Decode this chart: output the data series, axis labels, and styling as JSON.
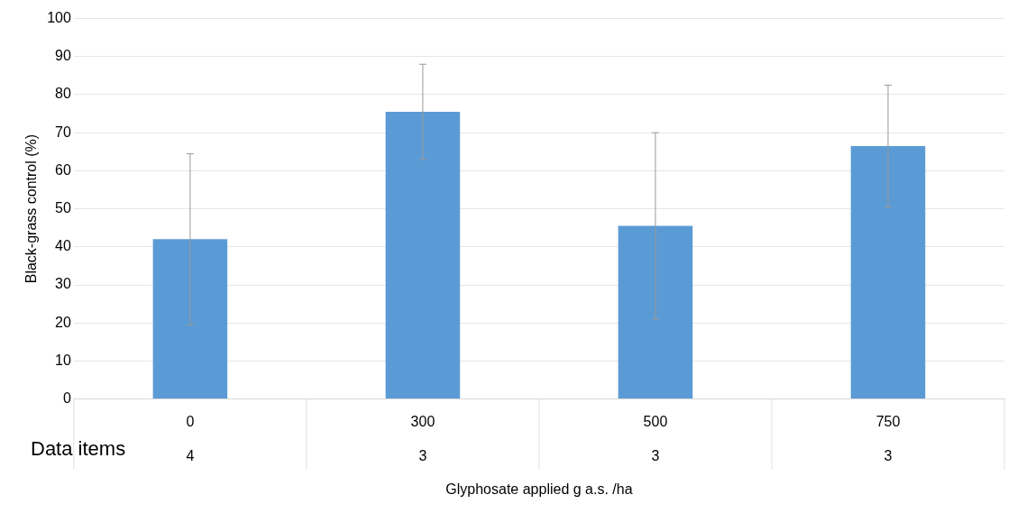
{
  "chart_data": {
    "type": "bar",
    "xlabel": "Glyphosate applied g a.s. /ha",
    "ylabel": "Black-grass control (%)",
    "categories": [
      "0",
      "300",
      "500",
      "750"
    ],
    "series": [
      {
        "color": "#5b9bd5",
        "values": [
          42,
          75.5,
          45.5,
          66.5
        ],
        "errors": [
          [
            19.5,
            64.5
          ],
          [
            63,
            88
          ],
          [
            21,
            70
          ],
          [
            50.5,
            82.5
          ]
        ]
      }
    ],
    "ylim": [
      0,
      100
    ],
    "yticks": [
      0,
      10,
      20,
      30,
      40,
      50,
      60,
      70,
      80,
      90,
      100
    ],
    "grid": "y",
    "legend": false,
    "annotations": [
      "Data items",
      "4",
      "3",
      "3",
      "3"
    ]
  }
}
